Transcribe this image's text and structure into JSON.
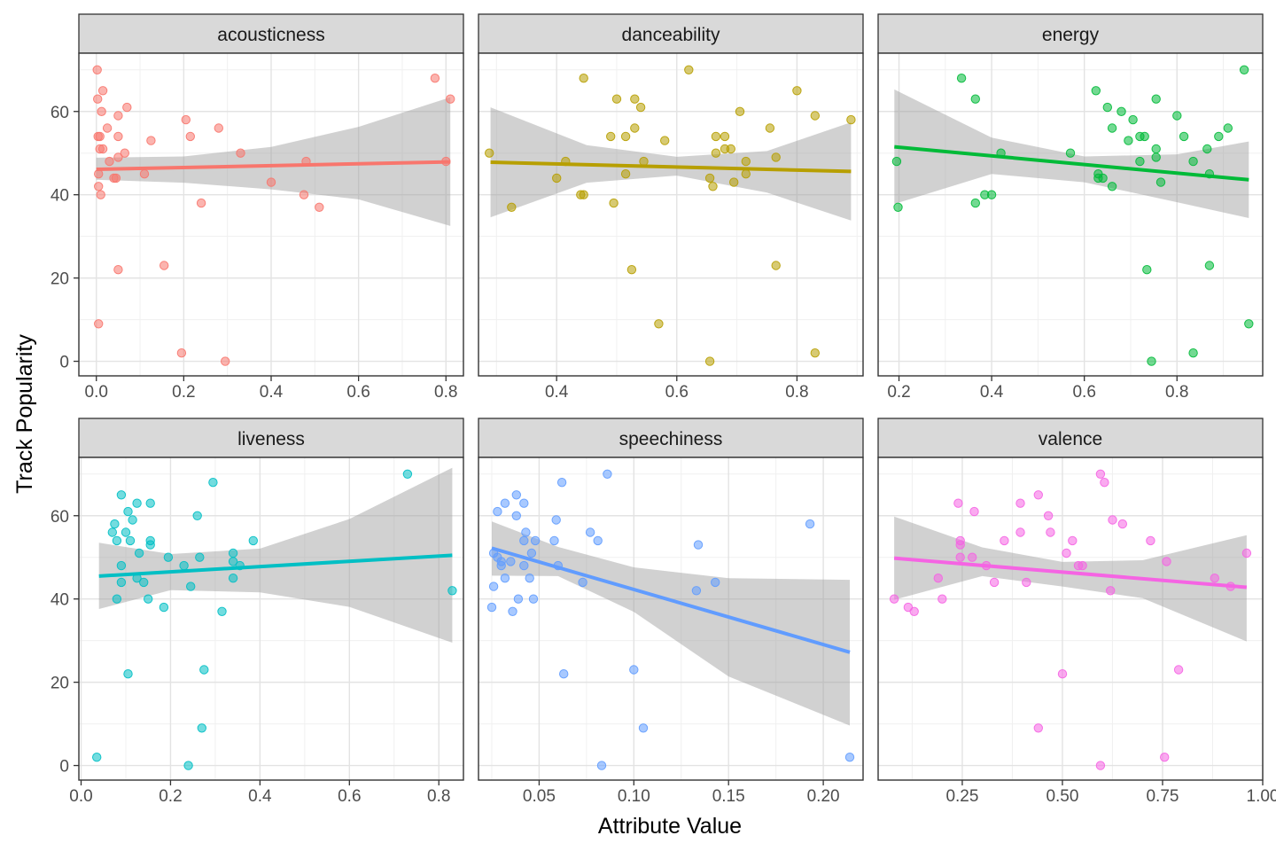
{
  "chart_data": {
    "type": "scatter",
    "xlabel": "Attribute Value",
    "ylabel": "Track Popularity",
    "grid": true,
    "legend": "none",
    "facets": [
      {
        "name": "acousticness",
        "color": "#F8766D",
        "xlim": [
          -0.04,
          0.84
        ],
        "xticks": [
          0.0,
          0.2,
          0.4,
          0.6,
          0.8
        ],
        "xtick_labels": [
          "0.0",
          "0.2",
          "0.4",
          "0.6",
          "0.8"
        ],
        "points": [
          [
            0.002,
            70
          ],
          [
            0.003,
            63
          ],
          [
            0.015,
            65
          ],
          [
            0.012,
            60
          ],
          [
            0.025,
            56
          ],
          [
            0.07,
            61
          ],
          [
            0.004,
            54
          ],
          [
            0.008,
            54
          ],
          [
            0.05,
            59
          ],
          [
            0.05,
            54
          ],
          [
            0.008,
            51
          ],
          [
            0.015,
            51
          ],
          [
            0.03,
            48
          ],
          [
            0.005,
            45
          ],
          [
            0.04,
            44
          ],
          [
            0.045,
            44
          ],
          [
            0.05,
            49
          ],
          [
            0.065,
            50
          ],
          [
            0.11,
            45
          ],
          [
            0.125,
            53
          ],
          [
            0.205,
            58
          ],
          [
            0.215,
            54
          ],
          [
            0.28,
            56
          ],
          [
            0.33,
            50
          ],
          [
            0.4,
            43
          ],
          [
            0.48,
            48
          ],
          [
            0.475,
            40
          ],
          [
            0.51,
            37
          ],
          [
            0.24,
            38
          ],
          [
            0.01,
            40
          ],
          [
            0.005,
            42
          ],
          [
            0.05,
            22
          ],
          [
            0.155,
            23
          ],
          [
            0.195,
            2
          ],
          [
            0.295,
            0
          ],
          [
            0.005,
            9
          ],
          [
            0.775,
            68
          ],
          [
            0.81,
            63
          ],
          [
            0.8,
            48
          ]
        ],
        "fit": {
          "x": [
            0.0,
            0.81
          ],
          "y": [
            46.1,
            47.9
          ]
        },
        "band": {
          "x": [
            0.0,
            0.2,
            0.4,
            0.6,
            0.81
          ],
          "upper": [
            48.9,
            49.2,
            51.5,
            56.3,
            63.4
          ],
          "lower": [
            43.6,
            42.9,
            41.3,
            38.9,
            32.5
          ]
        }
      },
      {
        "name": "danceability",
        "color": "#B79F00",
        "xlim": [
          0.27,
          0.91
        ],
        "xticks": [
          0.4,
          0.6,
          0.8
        ],
        "xtick_labels": [
          "0.4",
          "0.6",
          "0.8"
        ],
        "points": [
          [
            0.288,
            50
          ],
          [
            0.325,
            37
          ],
          [
            0.445,
            68
          ],
          [
            0.5,
            63
          ],
          [
            0.53,
            63
          ],
          [
            0.54,
            61
          ],
          [
            0.62,
            70
          ],
          [
            0.8,
            65
          ],
          [
            0.705,
            60
          ],
          [
            0.83,
            59
          ],
          [
            0.89,
            58
          ],
          [
            0.53,
            56
          ],
          [
            0.755,
            56
          ],
          [
            0.49,
            54
          ],
          [
            0.515,
            54
          ],
          [
            0.665,
            54
          ],
          [
            0.68,
            54
          ],
          [
            0.58,
            53
          ],
          [
            0.68,
            51
          ],
          [
            0.69,
            51
          ],
          [
            0.665,
            50
          ],
          [
            0.765,
            49
          ],
          [
            0.415,
            48
          ],
          [
            0.545,
            48
          ],
          [
            0.715,
            48
          ],
          [
            0.515,
            45
          ],
          [
            0.715,
            45
          ],
          [
            0.4,
            44
          ],
          [
            0.655,
            44
          ],
          [
            0.695,
            43
          ],
          [
            0.66,
            42
          ],
          [
            0.44,
            40
          ],
          [
            0.445,
            40
          ],
          [
            0.495,
            38
          ],
          [
            0.525,
            22
          ],
          [
            0.765,
            23
          ],
          [
            0.57,
            9
          ],
          [
            0.655,
            0
          ],
          [
            0.83,
            2
          ]
        ],
        "fit": {
          "x": [
            0.29,
            0.89
          ],
          "y": [
            47.8,
            45.6
          ]
        },
        "band": {
          "x": [
            0.29,
            0.45,
            0.6,
            0.75,
            0.89
          ],
          "upper": [
            61.0,
            51.9,
            49.1,
            50.5,
            57.4
          ],
          "lower": [
            34.6,
            42.9,
            44.6,
            40.5,
            33.8
          ]
        }
      },
      {
        "name": "energy",
        "color": "#00BA38",
        "xlim": [
          0.155,
          0.985
        ],
        "xticks": [
          0.2,
          0.4,
          0.6,
          0.8
        ],
        "xtick_labels": [
          "0.2",
          "0.4",
          "0.6",
          "0.8"
        ],
        "points": [
          [
            0.195,
            48
          ],
          [
            0.198,
            37
          ],
          [
            0.335,
            68
          ],
          [
            0.365,
            63
          ],
          [
            0.365,
            38
          ],
          [
            0.385,
            40
          ],
          [
            0.4,
            40
          ],
          [
            0.42,
            50
          ],
          [
            0.57,
            50
          ],
          [
            0.625,
            65
          ],
          [
            0.65,
            61
          ],
          [
            0.68,
            60
          ],
          [
            0.705,
            58
          ],
          [
            0.66,
            56
          ],
          [
            0.695,
            53
          ],
          [
            0.72,
            54
          ],
          [
            0.73,
            54
          ],
          [
            0.755,
            51
          ],
          [
            0.755,
            63
          ],
          [
            0.8,
            59
          ],
          [
            0.815,
            54
          ],
          [
            0.835,
            48
          ],
          [
            0.865,
            51
          ],
          [
            0.87,
            45
          ],
          [
            0.89,
            54
          ],
          [
            0.91,
            56
          ],
          [
            0.945,
            70
          ],
          [
            0.63,
            45
          ],
          [
            0.64,
            44
          ],
          [
            0.63,
            44
          ],
          [
            0.66,
            42
          ],
          [
            0.72,
            48
          ],
          [
            0.755,
            49
          ],
          [
            0.765,
            43
          ],
          [
            0.735,
            22
          ],
          [
            0.87,
            23
          ],
          [
            0.955,
            9
          ],
          [
            0.745,
            0
          ],
          [
            0.835,
            2
          ]
        ],
        "fit": {
          "x": [
            0.19,
            0.955
          ],
          "y": [
            51.5,
            43.6
          ]
        },
        "band": {
          "x": [
            0.19,
            0.4,
            0.6,
            0.8,
            0.955
          ],
          "upper": [
            65.3,
            53.7,
            49.2,
            49.7,
            52.8
          ],
          "lower": [
            37.8,
            45.0,
            43.0,
            38.2,
            34.4
          ]
        }
      },
      {
        "name": "liveness",
        "color": "#00BFC4",
        "xlim": [
          -0.005,
          0.855
        ],
        "xticks": [
          0.0,
          0.2,
          0.4,
          0.6,
          0.8
        ],
        "xtick_labels": [
          "0.0",
          "0.2",
          "0.4",
          "0.6",
          "0.8"
        ],
        "points": [
          [
            0.035,
            2
          ],
          [
            0.09,
            65
          ],
          [
            0.125,
            63
          ],
          [
            0.155,
            63
          ],
          [
            0.105,
            61
          ],
          [
            0.26,
            60
          ],
          [
            0.075,
            58
          ],
          [
            0.07,
            56
          ],
          [
            0.1,
            56
          ],
          [
            0.08,
            54
          ],
          [
            0.11,
            54
          ],
          [
            0.155,
            54
          ],
          [
            0.155,
            53
          ],
          [
            0.115,
            59
          ],
          [
            0.13,
            51
          ],
          [
            0.195,
            50
          ],
          [
            0.265,
            50
          ],
          [
            0.34,
            51
          ],
          [
            0.34,
            49
          ],
          [
            0.355,
            48
          ],
          [
            0.385,
            54
          ],
          [
            0.09,
            48
          ],
          [
            0.23,
            48
          ],
          [
            0.125,
            45
          ],
          [
            0.34,
            45
          ],
          [
            0.09,
            44
          ],
          [
            0.14,
            44
          ],
          [
            0.245,
            43
          ],
          [
            0.08,
            40
          ],
          [
            0.15,
            40
          ],
          [
            0.185,
            38
          ],
          [
            0.315,
            37
          ],
          [
            0.295,
            68
          ],
          [
            0.73,
            70
          ],
          [
            0.83,
            42
          ],
          [
            0.105,
            22
          ],
          [
            0.275,
            23
          ],
          [
            0.27,
            9
          ],
          [
            0.24,
            0
          ]
        ],
        "fit": {
          "x": [
            0.04,
            0.83
          ],
          "y": [
            45.5,
            50.5
          ]
        },
        "band": {
          "x": [
            0.04,
            0.2,
            0.4,
            0.6,
            0.83
          ],
          "upper": [
            53.5,
            50.8,
            52.1,
            59.2,
            71.5
          ],
          "lower": [
            37.6,
            42.1,
            41.6,
            38.1,
            29.5
          ]
        }
      },
      {
        "name": "speechiness",
        "color": "#619CFF",
        "xlim": [
          0.018,
          0.221
        ],
        "xticks": [
          0.05,
          0.1,
          0.15,
          0.2
        ],
        "xtick_labels": [
          "0.05",
          "0.10",
          "0.15",
          "0.20"
        ],
        "points": [
          [
            0.025,
            38
          ],
          [
            0.026,
            43
          ],
          [
            0.026,
            51
          ],
          [
            0.028,
            61
          ],
          [
            0.028,
            50
          ],
          [
            0.03,
            49
          ],
          [
            0.03,
            48
          ],
          [
            0.032,
            63
          ],
          [
            0.032,
            45
          ],
          [
            0.035,
            49
          ],
          [
            0.036,
            37
          ],
          [
            0.038,
            65
          ],
          [
            0.038,
            60
          ],
          [
            0.039,
            40
          ],
          [
            0.042,
            63
          ],
          [
            0.042,
            54
          ],
          [
            0.042,
            48
          ],
          [
            0.043,
            56
          ],
          [
            0.045,
            45
          ],
          [
            0.046,
            51
          ],
          [
            0.047,
            40
          ],
          [
            0.048,
            54
          ],
          [
            0.058,
            54
          ],
          [
            0.059,
            59
          ],
          [
            0.06,
            48
          ],
          [
            0.062,
            68
          ],
          [
            0.063,
            22
          ],
          [
            0.073,
            44
          ],
          [
            0.077,
            56
          ],
          [
            0.081,
            54
          ],
          [
            0.086,
            70
          ],
          [
            0.083,
            0
          ],
          [
            0.1,
            23
          ],
          [
            0.105,
            9
          ],
          [
            0.134,
            53
          ],
          [
            0.133,
            42
          ],
          [
            0.143,
            44
          ],
          [
            0.193,
            58
          ],
          [
            0.214,
            2
          ]
        ],
        "fit": {
          "x": [
            0.025,
            0.214
          ],
          "y": [
            52.2,
            27.2
          ]
        },
        "band": {
          "x": [
            0.025,
            0.06,
            0.1,
            0.15,
            0.214
          ],
          "upper": [
            58.6,
            52.5,
            47.6,
            45.0,
            44.6
          ],
          "lower": [
            45.6,
            45.5,
            36.9,
            21.4,
            9.6
          ]
        }
      },
      {
        "name": "valence",
        "color": "#F564E3",
        "xlim": [
          0.04,
          1.0
        ],
        "xticks": [
          0.25,
          0.5,
          0.75,
          1.0
        ],
        "xtick_labels": [
          "0.25",
          "0.50",
          "0.75",
          "1.00"
        ],
        "points": [
          [
            0.08,
            40
          ],
          [
            0.115,
            38
          ],
          [
            0.13,
            37
          ],
          [
            0.19,
            45
          ],
          [
            0.2,
            40
          ],
          [
            0.24,
            63
          ],
          [
            0.245,
            54
          ],
          [
            0.245,
            53
          ],
          [
            0.245,
            50
          ],
          [
            0.275,
            50
          ],
          [
            0.28,
            61
          ],
          [
            0.31,
            48
          ],
          [
            0.33,
            44
          ],
          [
            0.355,
            54
          ],
          [
            0.395,
            56
          ],
          [
            0.395,
            63
          ],
          [
            0.41,
            44
          ],
          [
            0.44,
            65
          ],
          [
            0.465,
            60
          ],
          [
            0.47,
            56
          ],
          [
            0.51,
            51
          ],
          [
            0.525,
            54
          ],
          [
            0.54,
            48
          ],
          [
            0.55,
            48
          ],
          [
            0.595,
            70
          ],
          [
            0.605,
            68
          ],
          [
            0.62,
            42
          ],
          [
            0.625,
            59
          ],
          [
            0.65,
            58
          ],
          [
            0.72,
            54
          ],
          [
            0.76,
            49
          ],
          [
            0.88,
            45
          ],
          [
            0.92,
            43
          ],
          [
            0.96,
            51
          ],
          [
            0.5,
            22
          ],
          [
            0.44,
            9
          ],
          [
            0.595,
            0
          ],
          [
            0.79,
            23
          ],
          [
            0.755,
            2
          ]
        ],
        "fit": {
          "x": [
            0.08,
            0.96
          ],
          "y": [
            49.8,
            42.8
          ]
        },
        "band": {
          "x": [
            0.08,
            0.3,
            0.5,
            0.7,
            0.96
          ],
          "upper": [
            59.8,
            52.4,
            48.9,
            49.3,
            55.3
          ],
          "lower": [
            39.8,
            45.5,
            43.0,
            40.2,
            29.8
          ]
        }
      }
    ],
    "ylim": [
      -3.5,
      74
    ],
    "yticks": [
      0,
      20,
      40,
      60
    ],
    "ytick_labels": [
      "0",
      "20",
      "40",
      "60"
    ]
  }
}
